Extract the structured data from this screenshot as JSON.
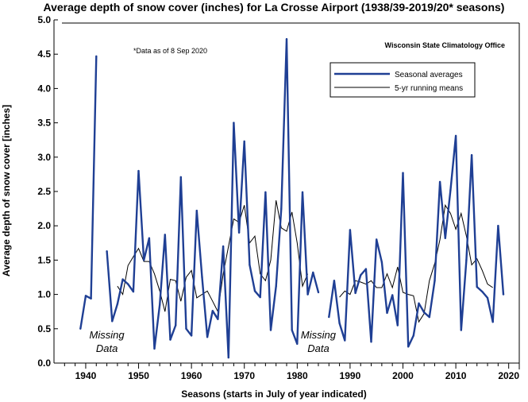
{
  "chart_data": {
    "type": "line",
    "title": "Average depth of snow cover (inches) for La Crosse Airport (1938/39-2019/20* seasons)",
    "xlabel": "Seasons (starts in July of year indicated)",
    "ylabel": "Average depth of snow cover [inches]",
    "note": "*Data as of 8 Sep 2020",
    "source": "Wisconsin State Climatology Office",
    "xlim": [
      1934,
      2022
    ],
    "ylim": [
      0,
      5
    ],
    "x_ticks": [
      1940,
      1950,
      1960,
      1970,
      1980,
      1990,
      2000,
      2010,
      2020
    ],
    "y_ticks": [
      "0.0",
      "0.5",
      "1.0",
      "1.5",
      "2.0",
      "2.5",
      "3.0",
      "3.5",
      "4.0",
      "4.5",
      "5.0"
    ],
    "grid": false,
    "legend": {
      "position": "top-right",
      "entries": [
        "Seasonal averages",
        "5-yr running means"
      ]
    },
    "colors": {
      "seasonal": "#1f3f94",
      "running": "#000000"
    },
    "annotations": [
      {
        "text_lines": [
          "Missing",
          "Data"
        ],
        "x": 1944,
        "y": 0.36
      },
      {
        "text_lines": [
          "Missing",
          "Data"
        ],
        "x": 1984,
        "y": 0.36
      }
    ],
    "series": [
      {
        "name": "Seasonal averages",
        "segments": [
          [
            [
              1939,
              0.5
            ],
            [
              1940,
              0.98
            ],
            [
              1941,
              0.94
            ],
            [
              1942,
              4.47
            ]
          ],
          [
            [
              1944,
              1.63
            ],
            [
              1945,
              0.61
            ],
            [
              1946,
              0.86
            ],
            [
              1947,
              1.22
            ],
            [
              1948,
              1.15
            ],
            [
              1949,
              1.04
            ],
            [
              1950,
              2.8
            ],
            [
              1951,
              1.5
            ],
            [
              1952,
              1.82
            ],
            [
              1953,
              0.21
            ],
            [
              1954,
              0.85
            ],
            [
              1955,
              1.87
            ],
            [
              1956,
              0.34
            ],
            [
              1957,
              0.55
            ],
            [
              1958,
              2.71
            ],
            [
              1959,
              0.5
            ],
            [
              1960,
              0.4
            ],
            [
              1961,
              2.22
            ],
            [
              1962,
              1.25
            ],
            [
              1963,
              0.38
            ],
            [
              1964,
              0.76
            ],
            [
              1965,
              0.64
            ],
            [
              1966,
              1.7
            ],
            [
              1967,
              0.08
            ],
            [
              1968,
              3.5
            ],
            [
              1969,
              1.9
            ],
            [
              1970,
              3.23
            ],
            [
              1971,
              1.43
            ],
            [
              1972,
              1.05
            ],
            [
              1973,
              0.96
            ],
            [
              1974,
              2.49
            ],
            [
              1975,
              0.48
            ],
            [
              1976,
              1.12
            ],
            [
              1977,
              2.25
            ],
            [
              1978,
              4.72
            ],
            [
              1979,
              0.48
            ],
            [
              1980,
              0.28
            ],
            [
              1981,
              2.49
            ],
            [
              1982,
              1.0
            ],
            [
              1983,
              1.32
            ],
            [
              1984,
              1.03
            ]
          ],
          [
            [
              1986,
              0.67
            ],
            [
              1987,
              1.2
            ],
            [
              1988,
              0.58
            ],
            [
              1989,
              0.33
            ],
            [
              1990,
              1.94
            ],
            [
              1991,
              1.02
            ],
            [
              1992,
              1.28
            ],
            [
              1993,
              1.37
            ],
            [
              1994,
              0.31
            ],
            [
              1995,
              1.8
            ],
            [
              1996,
              1.47
            ],
            [
              1997,
              0.73
            ],
            [
              1998,
              0.99
            ],
            [
              1999,
              0.55
            ],
            [
              2000,
              2.77
            ],
            [
              2001,
              0.24
            ],
            [
              2002,
              0.4
            ],
            [
              2003,
              0.87
            ],
            [
              2004,
              0.74
            ],
            [
              2005,
              0.67
            ],
            [
              2006,
              1.2
            ],
            [
              2007,
              2.64
            ],
            [
              2008,
              1.82
            ],
            [
              2009,
              2.52
            ],
            [
              2010,
              3.31
            ],
            [
              2011,
              0.48
            ],
            [
              2012,
              1.5
            ],
            [
              2013,
              3.03
            ],
            [
              2014,
              1.11
            ],
            [
              2015,
              1.04
            ],
            [
              2016,
              0.95
            ],
            [
              2017,
              0.6
            ],
            [
              2018,
              2.0
            ],
            [
              2019,
              1.0
            ]
          ]
        ]
      },
      {
        "name": "5-yr running means",
        "segments": [
          [
            [
              1946,
              1.12
            ],
            [
              1947,
              1.0
            ],
            [
              1948,
              1.42
            ],
            [
              1949,
              1.55
            ],
            [
              1950,
              1.67
            ],
            [
              1951,
              1.48
            ],
            [
              1952,
              1.48
            ],
            [
              1953,
              1.3
            ],
            [
              1954,
              1.05
            ],
            [
              1955,
              0.75
            ],
            [
              1956,
              1.22
            ],
            [
              1957,
              1.2
            ],
            [
              1958,
              0.9
            ],
            [
              1959,
              1.25
            ],
            [
              1960,
              1.35
            ],
            [
              1961,
              0.95
            ],
            [
              1962,
              1.0
            ],
            [
              1963,
              1.05
            ],
            [
              1964,
              0.9
            ],
            [
              1965,
              0.75
            ],
            [
              1966,
              1.3
            ],
            [
              1967,
              1.7
            ],
            [
              1968,
              2.1
            ],
            [
              1969,
              2.05
            ],
            [
              1970,
              2.3
            ],
            [
              1971,
              1.75
            ],
            [
              1972,
              1.85
            ],
            [
              1973,
              1.3
            ],
            [
              1974,
              1.2
            ],
            [
              1975,
              1.5
            ],
            [
              1976,
              2.37
            ],
            [
              1977,
              1.97
            ],
            [
              1978,
              1.92
            ],
            [
              1979,
              2.2
            ],
            [
              1980,
              1.75
            ],
            [
              1981,
              1.12
            ],
            [
              1982,
              1.3
            ]
          ],
          [
            [
              1988,
              0.96
            ],
            [
              1989,
              1.05
            ],
            [
              1990,
              1.0
            ],
            [
              1991,
              1.2
            ],
            [
              1992,
              1.18
            ],
            [
              1993,
              1.15
            ],
            [
              1994,
              1.2
            ],
            [
              1995,
              1.1
            ],
            [
              1996,
              1.1
            ],
            [
              1997,
              1.3
            ],
            [
              1998,
              1.1
            ],
            [
              1999,
              1.4
            ],
            [
              2000,
              1.03
            ],
            [
              2001,
              1.0
            ],
            [
              2002,
              0.98
            ],
            [
              2003,
              0.6
            ],
            [
              2004,
              0.72
            ],
            [
              2005,
              1.2
            ],
            [
              2006,
              1.45
            ],
            [
              2007,
              1.8
            ],
            [
              2008,
              2.3
            ],
            [
              2009,
              2.18
            ],
            [
              2010,
              1.95
            ],
            [
              2011,
              2.18
            ],
            [
              2012,
              1.85
            ],
            [
              2013,
              1.43
            ],
            [
              2014,
              1.52
            ],
            [
              2015,
              1.35
            ],
            [
              2016,
              1.15
            ],
            [
              2017,
              1.1
            ]
          ]
        ]
      }
    ]
  }
}
